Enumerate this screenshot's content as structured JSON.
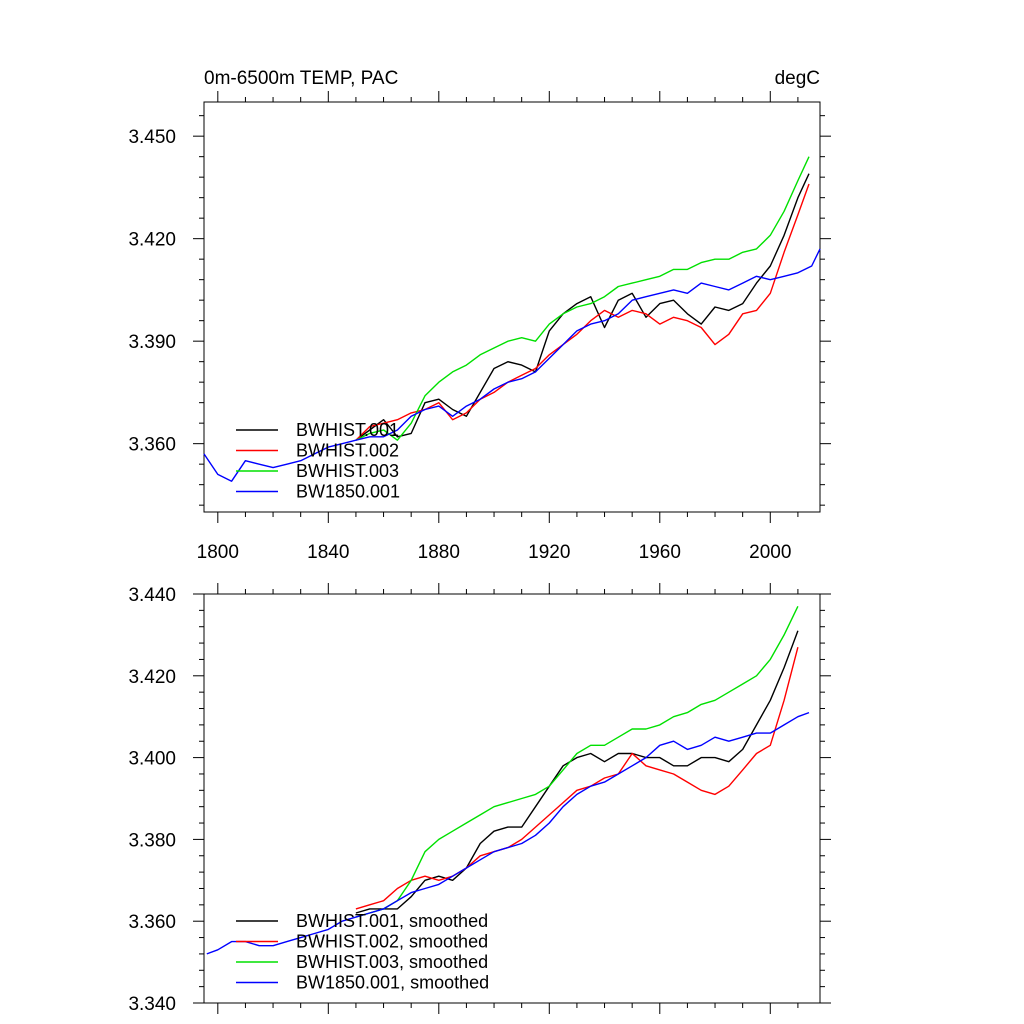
{
  "colors": {
    "black": "#000000",
    "red": "#ff0000",
    "green": "#00e000",
    "blue": "#0000ff"
  },
  "chart_data": [
    {
      "type": "line",
      "title_left": "0m-6500m TEMP, PAC",
      "title_right": "degC",
      "xlim": [
        1795,
        2018
      ],
      "ylim": [
        3.34,
        3.46
      ],
      "xticks": [
        1800,
        1840,
        1880,
        1920,
        1960,
        2000
      ],
      "xtick_labels": [
        "1800",
        "1840",
        "1880",
        "1920",
        "1960",
        "2000"
      ],
      "yticks": [
        3.36,
        3.39,
        3.42,
        3.45
      ],
      "ytick_labels": [
        "3.360",
        "3.390",
        "3.420",
        "3.450"
      ],
      "legend_position": "lower-left",
      "series": [
        {
          "name": "BWHIST.001",
          "color": "#000000",
          "x": [
            1850,
            1855,
            1860,
            1865,
            1870,
            1875,
            1880,
            1885,
            1890,
            1895,
            1900,
            1905,
            1910,
            1915,
            1920,
            1925,
            1930,
            1935,
            1940,
            1945,
            1950,
            1955,
            1960,
            1965,
            1970,
            1975,
            1980,
            1985,
            1990,
            1995,
            2000,
            2005,
            2010,
            2014
          ],
          "y": [
            3.361,
            3.364,
            3.367,
            3.362,
            3.363,
            3.372,
            3.373,
            3.37,
            3.368,
            3.375,
            3.382,
            3.384,
            3.383,
            3.381,
            3.393,
            3.398,
            3.401,
            3.403,
            3.394,
            3.402,
            3.404,
            3.397,
            3.401,
            3.402,
            3.398,
            3.395,
            3.4,
            3.399,
            3.401,
            3.407,
            3.412,
            3.421,
            3.432,
            3.439
          ]
        },
        {
          "name": "BWHIST.002",
          "color": "#ff0000",
          "x": [
            1850,
            1855,
            1860,
            1865,
            1870,
            1875,
            1880,
            1885,
            1890,
            1895,
            1900,
            1905,
            1910,
            1915,
            1920,
            1925,
            1930,
            1935,
            1940,
            1945,
            1950,
            1955,
            1960,
            1965,
            1970,
            1975,
            1980,
            1985,
            1990,
            1995,
            2000,
            2005,
            2010,
            2014
          ],
          "y": [
            3.361,
            3.365,
            3.366,
            3.367,
            3.369,
            3.37,
            3.372,
            3.367,
            3.369,
            3.373,
            3.375,
            3.378,
            3.38,
            3.382,
            3.386,
            3.389,
            3.392,
            3.396,
            3.399,
            3.397,
            3.399,
            3.398,
            3.395,
            3.397,
            3.396,
            3.394,
            3.389,
            3.392,
            3.398,
            3.399,
            3.404,
            3.416,
            3.427,
            3.436
          ]
        },
        {
          "name": "BWHIST.003",
          "color": "#00e000",
          "x": [
            1850,
            1855,
            1860,
            1865,
            1870,
            1875,
            1880,
            1885,
            1890,
            1895,
            1900,
            1905,
            1910,
            1915,
            1920,
            1925,
            1930,
            1935,
            1940,
            1945,
            1950,
            1955,
            1960,
            1965,
            1970,
            1975,
            1980,
            1985,
            1990,
            1995,
            2000,
            2005,
            2010,
            2014
          ],
          "y": [
            3.361,
            3.363,
            3.364,
            3.361,
            3.366,
            3.374,
            3.378,
            3.381,
            3.383,
            3.386,
            3.388,
            3.39,
            3.391,
            3.39,
            3.395,
            3.398,
            3.4,
            3.401,
            3.403,
            3.406,
            3.407,
            3.408,
            3.409,
            3.411,
            3.411,
            3.413,
            3.414,
            3.414,
            3.416,
            3.417,
            3.421,
            3.428,
            3.437,
            3.444
          ]
        },
        {
          "name": "BW1850.001",
          "color": "#0000ff",
          "x": [
            1795,
            1800,
            1805,
            1810,
            1815,
            1820,
            1825,
            1830,
            1835,
            1840,
            1845,
            1850,
            1855,
            1860,
            1865,
            1870,
            1875,
            1880,
            1885,
            1890,
            1895,
            1900,
            1905,
            1910,
            1915,
            1920,
            1925,
            1930,
            1935,
            1940,
            1945,
            1950,
            1955,
            1960,
            1965,
            1970,
            1975,
            1980,
            1985,
            1990,
            1995,
            2000,
            2005,
            2010,
            2015,
            2018
          ],
          "y": [
            3.357,
            3.351,
            3.349,
            3.355,
            3.354,
            3.353,
            3.354,
            3.355,
            3.357,
            3.359,
            3.36,
            3.361,
            3.362,
            3.362,
            3.364,
            3.368,
            3.37,
            3.371,
            3.368,
            3.371,
            3.373,
            3.376,
            3.378,
            3.379,
            3.381,
            3.385,
            3.389,
            3.393,
            3.395,
            3.396,
            3.398,
            3.402,
            3.403,
            3.404,
            3.405,
            3.404,
            3.407,
            3.406,
            3.405,
            3.407,
            3.409,
            3.408,
            3.409,
            3.41,
            3.412,
            3.417
          ]
        }
      ]
    },
    {
      "type": "line",
      "xlim": [
        1795,
        2018
      ],
      "ylim": [
        3.34,
        3.44
      ],
      "xticks": [
        1800,
        1840,
        1880,
        1920,
        1960,
        2000
      ],
      "yticks": [
        3.34,
        3.36,
        3.38,
        3.4,
        3.42,
        3.44
      ],
      "ytick_labels": [
        "3.340",
        "3.360",
        "3.380",
        "3.400",
        "3.420",
        "3.440"
      ],
      "legend_position": "lower-left",
      "series": [
        {
          "name": "BWHIST.001, smoothed",
          "color": "#000000",
          "x": [
            1850,
            1855,
            1860,
            1865,
            1870,
            1875,
            1880,
            1885,
            1890,
            1895,
            1900,
            1905,
            1910,
            1915,
            1920,
            1925,
            1930,
            1935,
            1940,
            1945,
            1950,
            1955,
            1960,
            1965,
            1970,
            1975,
            1980,
            1985,
            1990,
            1995,
            2000,
            2005,
            2010
          ],
          "y": [
            3.362,
            3.363,
            3.363,
            3.363,
            3.366,
            3.37,
            3.371,
            3.37,
            3.373,
            3.379,
            3.382,
            3.383,
            3.383,
            3.388,
            3.393,
            3.398,
            3.4,
            3.401,
            3.399,
            3.401,
            3.401,
            3.4,
            3.4,
            3.398,
            3.398,
            3.4,
            3.4,
            3.399,
            3.402,
            3.408,
            3.414,
            3.422,
            3.431
          ]
        },
        {
          "name": "BWHIST.002, smoothed",
          "color": "#ff0000",
          "x": [
            1850,
            1855,
            1860,
            1865,
            1870,
            1875,
            1880,
            1885,
            1890,
            1895,
            1900,
            1905,
            1910,
            1915,
            1920,
            1925,
            1930,
            1935,
            1940,
            1945,
            1950,
            1955,
            1960,
            1965,
            1970,
            1975,
            1980,
            1985,
            1990,
            1995,
            2000,
            2005,
            2010
          ],
          "y": [
            3.363,
            3.364,
            3.365,
            3.368,
            3.37,
            3.371,
            3.37,
            3.371,
            3.373,
            3.376,
            3.377,
            3.378,
            3.38,
            3.383,
            3.386,
            3.389,
            3.392,
            3.393,
            3.395,
            3.396,
            3.401,
            3.398,
            3.397,
            3.396,
            3.394,
            3.392,
            3.391,
            3.393,
            3.397,
            3.401,
            3.403,
            3.414,
            3.427
          ]
        },
        {
          "name": "BWHIST.003, smoothed",
          "color": "#00e000",
          "x": [
            1850,
            1855,
            1860,
            1865,
            1870,
            1875,
            1880,
            1885,
            1890,
            1895,
            1900,
            1905,
            1910,
            1915,
            1920,
            1925,
            1930,
            1935,
            1940,
            1945,
            1950,
            1955,
            1960,
            1965,
            1970,
            1975,
            1980,
            1985,
            1990,
            1995,
            2000,
            2005,
            2010
          ],
          "y": [
            3.361,
            3.362,
            3.363,
            3.365,
            3.37,
            3.377,
            3.38,
            3.382,
            3.384,
            3.386,
            3.388,
            3.389,
            3.39,
            3.391,
            3.393,
            3.397,
            3.401,
            3.403,
            3.403,
            3.405,
            3.407,
            3.407,
            3.408,
            3.41,
            3.411,
            3.413,
            3.414,
            3.416,
            3.418,
            3.42,
            3.424,
            3.43,
            3.437
          ]
        },
        {
          "name": "BW1850.001, smoothed",
          "color": "#0000ff",
          "x": [
            1796,
            1800,
            1805,
            1810,
            1815,
            1820,
            1825,
            1830,
            1835,
            1840,
            1845,
            1850,
            1855,
            1860,
            1865,
            1870,
            1875,
            1880,
            1885,
            1890,
            1895,
            1900,
            1905,
            1910,
            1915,
            1920,
            1925,
            1930,
            1935,
            1940,
            1945,
            1950,
            1955,
            1960,
            1965,
            1970,
            1975,
            1980,
            1985,
            1990,
            1995,
            2000,
            2005,
            2010,
            2014
          ],
          "y": [
            3.352,
            3.353,
            3.355,
            3.355,
            3.354,
            3.354,
            3.355,
            3.356,
            3.357,
            3.358,
            3.36,
            3.361,
            3.362,
            3.363,
            3.365,
            3.367,
            3.368,
            3.369,
            3.371,
            3.373,
            3.375,
            3.377,
            3.378,
            3.379,
            3.381,
            3.384,
            3.388,
            3.391,
            3.393,
            3.394,
            3.396,
            3.398,
            3.4,
            3.403,
            3.404,
            3.402,
            3.403,
            3.405,
            3.404,
            3.405,
            3.406,
            3.406,
            3.408,
            3.41,
            3.411
          ]
        }
      ]
    }
  ]
}
